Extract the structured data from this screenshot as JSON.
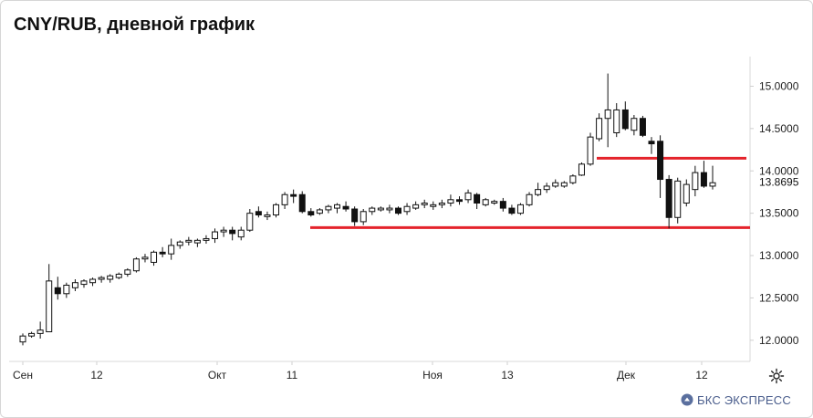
{
  "title": "CNY/RUB, дневной график",
  "brand": {
    "text": "БКС ЭКСПРЕСС",
    "color": "#4a5d8c"
  },
  "icons": {
    "settings": "gear-icon",
    "brand": "bks-logo-icon"
  },
  "colors": {
    "up_body": "#ffffff",
    "down_body": "#111111",
    "wick": "#111111",
    "level": "#e4232b"
  },
  "chart_data": {
    "type": "candlestick",
    "x_labels": [
      "Сен",
      "12",
      "Окт",
      "11",
      "Ноя",
      "13",
      "Дек",
      "12"
    ],
    "y_ticks": [
      "15.0000",
      "14.5000",
      "14.0000",
      "13.5000",
      "13.0000",
      "12.5000",
      "12.0000"
    ],
    "ylim": [
      11.75,
      15.35
    ],
    "last_price": "13.8695",
    "horizontal_levels": [
      13.33,
      14.15
    ],
    "candles": [
      [
        11.98,
        12.08,
        11.94,
        12.05
      ],
      [
        12.05,
        12.1,
        12.03,
        12.08
      ],
      [
        12.08,
        12.22,
        12.02,
        12.12
      ],
      [
        12.1,
        12.9,
        12.1,
        12.7
      ],
      [
        12.62,
        12.75,
        12.48,
        12.55
      ],
      [
        12.55,
        12.68,
        12.5,
        12.65
      ],
      [
        12.62,
        12.72,
        12.58,
        12.68
      ],
      [
        12.66,
        12.72,
        12.62,
        12.7
      ],
      [
        12.68,
        12.74,
        12.64,
        12.72
      ],
      [
        12.72,
        12.76,
        12.68,
        12.74
      ],
      [
        12.72,
        12.78,
        12.68,
        12.76
      ],
      [
        12.74,
        12.8,
        12.72,
        12.78
      ],
      [
        12.78,
        12.85,
        12.75,
        12.83
      ],
      [
        12.82,
        12.98,
        12.8,
        12.96
      ],
      [
        12.96,
        13.02,
        12.92,
        12.98
      ],
      [
        12.92,
        13.06,
        12.88,
        13.04
      ],
      [
        13.04,
        13.1,
        12.98,
        13.02
      ],
      [
        13.02,
        13.2,
        12.95,
        13.12
      ],
      [
        13.12,
        13.18,
        13.08,
        13.16
      ],
      [
        13.16,
        13.22,
        13.12,
        13.18
      ],
      [
        13.15,
        13.2,
        13.1,
        13.18
      ],
      [
        13.18,
        13.24,
        13.14,
        13.2
      ],
      [
        13.2,
        13.32,
        13.15,
        13.28
      ],
      [
        13.28,
        13.34,
        13.22,
        13.3
      ],
      [
        13.3,
        13.34,
        13.18,
        13.26
      ],
      [
        13.22,
        13.34,
        13.18,
        13.3
      ],
      [
        13.3,
        13.55,
        13.28,
        13.5
      ],
      [
        13.52,
        13.58,
        13.45,
        13.48
      ],
      [
        13.46,
        13.52,
        13.42,
        13.48
      ],
      [
        13.48,
        13.62,
        13.45,
        13.6
      ],
      [
        13.6,
        13.75,
        13.55,
        13.72
      ],
      [
        13.72,
        13.78,
        13.62,
        13.7
      ],
      [
        13.72,
        13.76,
        13.5,
        13.52
      ],
      [
        13.52,
        13.56,
        13.46,
        13.48
      ],
      [
        13.5,
        13.56,
        13.48,
        13.54
      ],
      [
        13.54,
        13.6,
        13.5,
        13.58
      ],
      [
        13.56,
        13.62,
        13.5,
        13.6
      ],
      [
        13.58,
        13.64,
        13.52,
        13.55
      ],
      [
        13.55,
        13.58,
        13.35,
        13.4
      ],
      [
        13.4,
        13.55,
        13.36,
        13.52
      ],
      [
        13.52,
        13.58,
        13.48,
        13.56
      ],
      [
        13.54,
        13.58,
        13.52,
        13.56
      ],
      [
        13.54,
        13.6,
        13.5,
        13.56
      ],
      [
        13.56,
        13.58,
        13.48,
        13.5
      ],
      [
        13.52,
        13.62,
        13.48,
        13.58
      ],
      [
        13.56,
        13.64,
        13.54,
        13.6
      ],
      [
        13.6,
        13.66,
        13.56,
        13.62
      ],
      [
        13.58,
        13.64,
        13.54,
        13.6
      ],
      [
        13.6,
        13.66,
        13.56,
        13.62
      ],
      [
        13.62,
        13.72,
        13.58,
        13.66
      ],
      [
        13.66,
        13.7,
        13.6,
        13.64
      ],
      [
        13.66,
        13.78,
        13.62,
        13.74
      ],
      [
        13.72,
        13.74,
        13.55,
        13.62
      ],
      [
        13.6,
        13.68,
        13.58,
        13.66
      ],
      [
        13.62,
        13.66,
        13.6,
        13.64
      ],
      [
        13.64,
        13.68,
        13.52,
        13.56
      ],
      [
        13.56,
        13.6,
        13.48,
        13.5
      ],
      [
        13.5,
        13.62,
        13.48,
        13.6
      ],
      [
        13.6,
        13.75,
        13.58,
        13.72
      ],
      [
        13.72,
        13.86,
        13.7,
        13.78
      ],
      [
        13.78,
        13.86,
        13.74,
        13.82
      ],
      [
        13.82,
        13.9,
        13.8,
        13.86
      ],
      [
        13.82,
        13.88,
        13.8,
        13.86
      ],
      [
        13.86,
        13.96,
        13.84,
        13.94
      ],
      [
        13.95,
        14.1,
        13.94,
        14.08
      ],
      [
        14.08,
        14.45,
        14.06,
        14.4
      ],
      [
        14.38,
        14.68,
        14.35,
        14.62
      ],
      [
        14.62,
        15.15,
        14.28,
        14.72
      ],
      [
        14.45,
        14.8,
        14.4,
        14.72
      ],
      [
        14.72,
        14.82,
        14.48,
        14.5
      ],
      [
        14.48,
        14.66,
        14.42,
        14.62
      ],
      [
        14.62,
        14.65,
        14.4,
        14.42
      ],
      [
        14.35,
        14.4,
        14.2,
        14.32
      ],
      [
        14.35,
        14.42,
        13.68,
        13.9
      ],
      [
        13.9,
        13.95,
        13.32,
        13.45
      ],
      [
        13.45,
        13.92,
        13.38,
        13.88
      ],
      [
        13.62,
        13.9,
        13.58,
        13.84
      ],
      [
        13.78,
        14.06,
        13.7,
        13.98
      ],
      [
        13.98,
        14.12,
        13.8,
        13.82
      ],
      [
        13.82,
        14.06,
        13.78,
        13.86
      ]
    ]
  }
}
